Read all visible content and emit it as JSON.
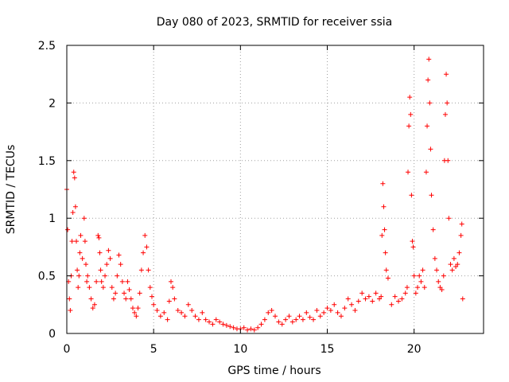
{
  "chart_data": {
    "type": "scatter",
    "title": "Day 080 of 2023, SRMTID for receiver ssia",
    "xlabel": "GPS time / hours",
    "ylabel": "SRMTID / TECUs",
    "xlim": [
      0,
      24
    ],
    "ylim": [
      0,
      2.5
    ],
    "xticks": [
      0,
      5,
      10,
      15,
      20
    ],
    "xtick_labels": [
      "0",
      "5",
      "10",
      "15",
      "20"
    ],
    "yticks": [
      0,
      0.5,
      1,
      1.5,
      2,
      2.5
    ],
    "ytick_labels": [
      "0",
      "0.5",
      "1",
      "1.5",
      "2",
      "2.5"
    ],
    "grid": true,
    "marker": "+",
    "color": "#ff0000",
    "series": [
      {
        "name": "SRMTID",
        "x": [
          0.0,
          0.05,
          0.1,
          0.15,
          0.2,
          0.25,
          0.3,
          0.35,
          0.4,
          0.45,
          0.5,
          0.55,
          0.6,
          0.65,
          0.7,
          0.75,
          0.8,
          0.9,
          1.0,
          1.05,
          1.1,
          1.15,
          1.2,
          1.3,
          1.4,
          1.5,
          1.6,
          1.7,
          1.8,
          1.85,
          1.9,
          1.95,
          2.0,
          2.1,
          2.2,
          2.3,
          2.4,
          2.5,
          2.6,
          2.7,
          2.8,
          2.9,
          3.0,
          3.1,
          3.2,
          3.3,
          3.4,
          3.5,
          3.6,
          3.7,
          3.8,
          3.9,
          4.0,
          4.1,
          4.2,
          4.3,
          4.4,
          4.5,
          4.6,
          4.7,
          4.8,
          4.9,
          5.0,
          5.2,
          5.4,
          5.6,
          5.8,
          5.9,
          6.0,
          6.1,
          6.2,
          6.4,
          6.6,
          6.8,
          7.0,
          7.2,
          7.4,
          7.6,
          7.8,
          8.0,
          8.2,
          8.4,
          8.6,
          8.8,
          9.0,
          9.2,
          9.4,
          9.6,
          9.8,
          10.0,
          10.2,
          10.4,
          10.6,
          10.8,
          11.0,
          11.2,
          11.4,
          11.6,
          11.8,
          12.0,
          12.2,
          12.4,
          12.6,
          12.8,
          13.0,
          13.2,
          13.4,
          13.6,
          13.8,
          14.0,
          14.2,
          14.4,
          14.6,
          14.8,
          15.0,
          15.2,
          15.4,
          15.6,
          15.8,
          16.0,
          16.2,
          16.4,
          16.6,
          16.8,
          17.0,
          17.2,
          17.4,
          17.6,
          17.8,
          18.0,
          18.1,
          18.15,
          18.2,
          18.25,
          18.3,
          18.35,
          18.4,
          18.5,
          18.7,
          18.9,
          19.1,
          19.3,
          19.5,
          19.6,
          19.65,
          19.7,
          19.75,
          19.8,
          19.85,
          19.9,
          19.95,
          20.0,
          20.1,
          20.2,
          20.3,
          20.4,
          20.5,
          20.6,
          20.7,
          20.75,
          20.8,
          20.85,
          20.9,
          20.95,
          21.0,
          21.1,
          21.2,
          21.3,
          21.4,
          21.5,
          21.6,
          21.7,
          21.75,
          21.8,
          21.85,
          21.9,
          21.95,
          22.0,
          22.1,
          22.2,
          22.3,
          22.4,
          22.5,
          22.6,
          22.7,
          22.75,
          22.8
        ],
        "y": [
          1.25,
          0.9,
          0.45,
          0.3,
          0.2,
          0.5,
          0.8,
          1.05,
          1.4,
          1.35,
          1.1,
          0.8,
          0.55,
          0.4,
          0.5,
          0.7,
          0.85,
          0.65,
          1.0,
          0.8,
          0.6,
          0.45,
          0.5,
          0.4,
          0.3,
          0.22,
          0.25,
          0.45,
          0.85,
          0.83,
          0.7,
          0.55,
          0.45,
          0.4,
          0.5,
          0.6,
          0.72,
          0.65,
          0.4,
          0.3,
          0.35,
          0.5,
          0.68,
          0.6,
          0.45,
          0.35,
          0.3,
          0.45,
          0.38,
          0.3,
          0.22,
          0.18,
          0.15,
          0.22,
          0.35,
          0.55,
          0.7,
          0.85,
          0.75,
          0.55,
          0.4,
          0.32,
          0.25,
          0.2,
          0.15,
          0.18,
          0.12,
          0.28,
          0.45,
          0.4,
          0.3,
          0.2,
          0.18,
          0.15,
          0.25,
          0.2,
          0.15,
          0.12,
          0.18,
          0.12,
          0.1,
          0.08,
          0.12,
          0.1,
          0.08,
          0.07,
          0.06,
          0.05,
          0.04,
          0.04,
          0.05,
          0.03,
          0.04,
          0.03,
          0.05,
          0.08,
          0.12,
          0.18,
          0.2,
          0.15,
          0.1,
          0.08,
          0.12,
          0.15,
          0.1,
          0.12,
          0.15,
          0.12,
          0.18,
          0.14,
          0.12,
          0.2,
          0.15,
          0.18,
          0.22,
          0.2,
          0.25,
          0.18,
          0.15,
          0.22,
          0.3,
          0.25,
          0.2,
          0.28,
          0.35,
          0.3,
          0.32,
          0.28,
          0.35,
          0.3,
          0.32,
          0.85,
          1.3,
          1.1,
          0.9,
          0.7,
          0.55,
          0.48,
          0.25,
          0.32,
          0.28,
          0.3,
          0.35,
          0.4,
          1.4,
          1.8,
          2.05,
          1.9,
          1.2,
          0.8,
          0.75,
          0.5,
          0.35,
          0.4,
          0.5,
          0.45,
          0.55,
          0.4,
          1.4,
          1.8,
          2.2,
          2.38,
          2.0,
          1.6,
          1.2,
          0.9,
          0.65,
          0.55,
          0.45,
          0.4,
          0.38,
          0.5,
          1.5,
          1.9,
          2.25,
          2.0,
          1.5,
          1.0,
          0.6,
          0.55,
          0.65,
          0.58,
          0.6,
          0.7,
          0.85,
          0.95,
          0.3
        ]
      }
    ]
  }
}
